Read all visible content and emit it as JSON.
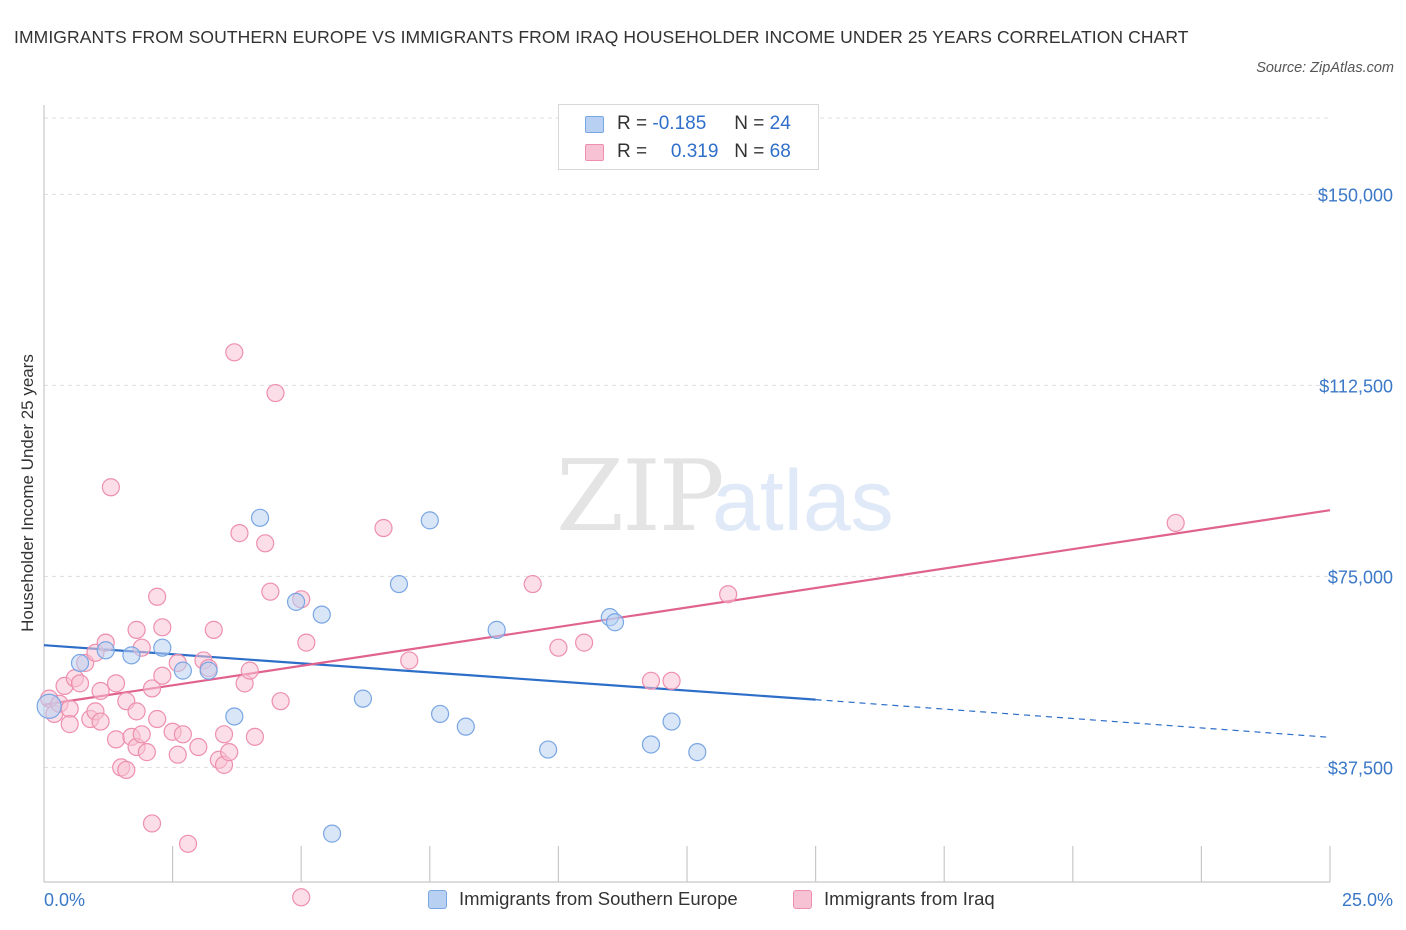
{
  "title": "IMMIGRANTS FROM SOUTHERN EUROPE VS IMMIGRANTS FROM IRAQ HOUSEHOLDER INCOME UNDER 25 YEARS CORRELATION CHART",
  "source": "Source: ZipAtlas.com",
  "watermark": {
    "zip": "ZIP",
    "atlas": "atlas"
  },
  "colors": {
    "blue_fill": "#b8d1f3",
    "blue_stroke": "#7aa6e3",
    "blue_line": "#2d6ec9",
    "pink_fill": "#f7c2d3",
    "pink_stroke": "#ee8fae",
    "pink_line": "#e0628f",
    "axis_text": "#3b78c7",
    "grid": "#dddddd"
  },
  "legend_top": {
    "rows": [
      {
        "r_label": "R =",
        "r_value": "-0.185",
        "n_label": "N =",
        "n_value": "24"
      },
      {
        "r_label": "R =",
        "r_value": "0.319",
        "n_label": "N =",
        "n_value": "68"
      }
    ]
  },
  "legend_bottom": {
    "series1": "Immigrants from Southern Europe",
    "series2": "Immigrants from Iraq"
  },
  "chart_data": {
    "type": "scatter",
    "xlabel": "",
    "ylabel": "Householder Income Under 25 years",
    "xlim": [
      0,
      25
    ],
    "ylim": [
      15000,
      165000
    ],
    "x_tick_labels": [
      "0.0%",
      "25.0%"
    ],
    "y_ticks": [
      37500,
      75000,
      112500,
      150000
    ],
    "y_tick_labels": [
      "$37,500",
      "$75,000",
      "$112,500",
      "$150,000"
    ],
    "grid": true,
    "legend": "top-center",
    "series": [
      {
        "name": "Immigrants from Southern Europe",
        "r": -0.185,
        "n": 24,
        "trend": {
          "x0": 0,
          "y0": 61500,
          "x1": 15,
          "y1": 50800,
          "dash_to_x": 25,
          "dash_y": 43400
        },
        "points": [
          [
            0.1,
            49500
          ],
          [
            0.7,
            58000
          ],
          [
            1.2,
            60500
          ],
          [
            1.7,
            59500
          ],
          [
            2.3,
            61000
          ],
          [
            2.7,
            56500
          ],
          [
            3.2,
            56500
          ],
          [
            3.7,
            47500
          ],
          [
            4.2,
            86500
          ],
          [
            4.9,
            70000
          ],
          [
            5.4,
            67500
          ],
          [
            5.6,
            24500
          ],
          [
            6.2,
            51000
          ],
          [
            6.9,
            73500
          ],
          [
            7.5,
            86000
          ],
          [
            7.7,
            48000
          ],
          [
            8.2,
            45500
          ],
          [
            8.8,
            64500
          ],
          [
            9.8,
            41000
          ],
          [
            11.0,
            67000
          ],
          [
            11.1,
            66000
          ],
          [
            11.8,
            42000
          ],
          [
            12.2,
            46500
          ],
          [
            12.7,
            40500
          ]
        ]
      },
      {
        "name": "Immigrants from Iraq",
        "r": 0.319,
        "n": 68,
        "trend": {
          "x0": 0,
          "y0": 49800,
          "x1": 25,
          "y1": 88000
        },
        "points": [
          [
            0.1,
            51000
          ],
          [
            0.2,
            48000
          ],
          [
            0.3,
            50000
          ],
          [
            0.4,
            53500
          ],
          [
            0.5,
            49000
          ],
          [
            0.5,
            46000
          ],
          [
            0.6,
            55000
          ],
          [
            0.7,
            54000
          ],
          [
            0.8,
            58000
          ],
          [
            0.9,
            47000
          ],
          [
            1.0,
            60000
          ],
          [
            1.0,
            48500
          ],
          [
            1.1,
            46500
          ],
          [
            1.1,
            52500
          ],
          [
            1.2,
            62000
          ],
          [
            1.3,
            92500
          ],
          [
            1.4,
            54000
          ],
          [
            1.4,
            43000
          ],
          [
            1.5,
            37500
          ],
          [
            1.6,
            50500
          ],
          [
            1.6,
            37000
          ],
          [
            1.7,
            43500
          ],
          [
            1.8,
            48500
          ],
          [
            1.8,
            41500
          ],
          [
            1.8,
            64500
          ],
          [
            1.9,
            61000
          ],
          [
            1.9,
            44000
          ],
          [
            2.0,
            40500
          ],
          [
            2.1,
            53000
          ],
          [
            2.1,
            26500
          ],
          [
            2.2,
            71000
          ],
          [
            2.2,
            47000
          ],
          [
            2.3,
            55500
          ],
          [
            2.3,
            65000
          ],
          [
            2.5,
            44500
          ],
          [
            2.6,
            58000
          ],
          [
            2.6,
            40000
          ],
          [
            2.7,
            44000
          ],
          [
            2.8,
            22500
          ],
          [
            3.0,
            41500
          ],
          [
            3.1,
            58500
          ],
          [
            3.2,
            57000
          ],
          [
            3.3,
            64500
          ],
          [
            3.4,
            39000
          ],
          [
            3.5,
            38000
          ],
          [
            3.5,
            44000
          ],
          [
            3.6,
            40500
          ],
          [
            3.7,
            119000
          ],
          [
            3.8,
            83500
          ],
          [
            3.9,
            54000
          ],
          [
            4.0,
            56500
          ],
          [
            4.1,
            43500
          ],
          [
            4.3,
            81500
          ],
          [
            4.4,
            72000
          ],
          [
            4.5,
            111000
          ],
          [
            4.6,
            50500
          ],
          [
            5.0,
            70500
          ],
          [
            5.1,
            62000
          ],
          [
            5.0,
            12000
          ],
          [
            6.6,
            84500
          ],
          [
            7.1,
            58500
          ],
          [
            9.5,
            73500
          ],
          [
            10.0,
            61000
          ],
          [
            10.5,
            62000
          ],
          [
            11.8,
            54500
          ],
          [
            12.2,
            54500
          ],
          [
            13.3,
            71500
          ],
          [
            22.0,
            85500
          ]
        ]
      }
    ]
  }
}
